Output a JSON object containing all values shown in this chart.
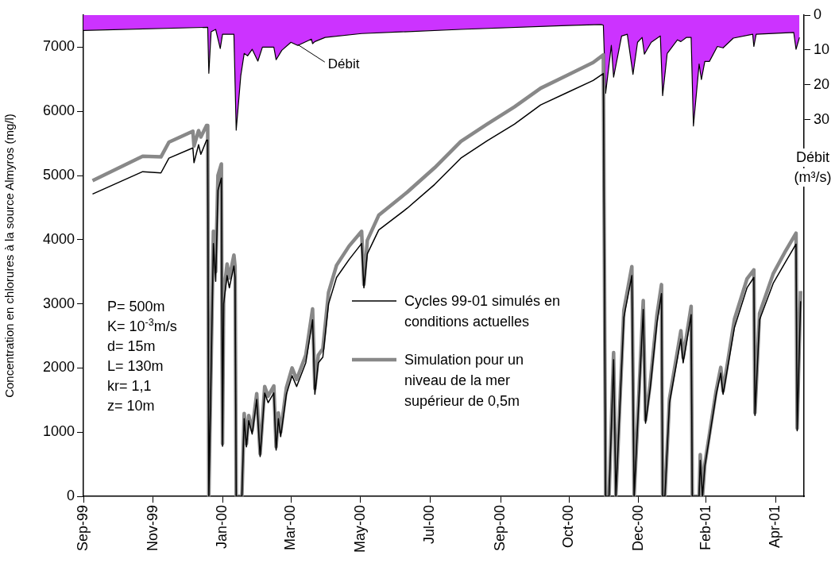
{
  "chart_data": {
    "type": "line",
    "ylabel": "Concentration en chlorures à la source Almyros (mg/l)",
    "y2label": "Débit (m³/s)",
    "legend": "bottom",
    "marker": "none",
    "xlim": [
      "1999-09-01",
      "2001-05-25"
    ],
    "xticks": [
      {
        "value": "1999-09-01",
        "label": "Sep-99"
      },
      {
        "value": "1999-11-01",
        "label": "Nov-99"
      },
      {
        "value": "2000-01-01",
        "label": "Jan-00"
      },
      {
        "value": "2000-03-01",
        "label": "Mar-00"
      },
      {
        "value": "2000-05-01",
        "label": "May-00"
      },
      {
        "value": "2000-07-01",
        "label": "Jul-00"
      },
      {
        "value": "2000-09-01",
        "label": "Sep-00"
      },
      {
        "value": "2000-10-31",
        "label": "Oct-00"
      },
      {
        "value": "2000-12-31",
        "label": "Dec-00"
      },
      {
        "value": "2001-02-28",
        "label": "Feb-01"
      },
      {
        "value": "2001-04-30",
        "label": "Apr-01"
      }
    ],
    "ylim": [
      0,
      7500
    ],
    "yticks": [
      0,
      1000,
      2000,
      3000,
      4000,
      5000,
      6000,
      7000
    ],
    "y2lim": [
      138,
      0
    ],
    "y2ticks": [
      0,
      10,
      20,
      30
    ],
    "annotations": [
      {
        "text": "Débit",
        "x": "2000-03-07",
        "y": 7040
      },
      "P= 500m",
      "K= 10$^{-3}$m/s",
      "d= 15m",
      "L= 130m",
      "kr= 1,1",
      "z= 10m"
    ],
    "series": [
      {
        "name": "Cycles 99-01 simulés en conditions actuelles",
        "color": "#000000",
        "x": [
          "1999-09-09",
          "1999-10-23",
          "1999-11-08",
          "1999-11-15",
          "1999-12-06",
          "1999-12-07",
          "1999-12-11",
          "1999-12-13",
          "1999-12-18",
          "1999-12-19",
          "1999-12-20",
          "1999-12-24",
          "1999-12-26",
          "1999-12-28",
          "1999-12-31",
          "2000-01-01",
          "2000-01-02",
          "2000-01-05",
          "2000-01-07",
          "2000-01-11",
          "2000-01-12",
          "2000-01-13",
          "2000-01-18",
          "2000-01-20",
          "2000-01-22",
          "2000-01-24",
          "2000-01-27",
          "2000-01-31",
          "2000-02-03",
          "2000-02-07",
          "2000-02-10",
          "2000-02-15",
          "2000-02-17",
          "2000-02-19",
          "2000-02-21",
          "2000-02-26",
          "2000-03-02",
          "2000-03-06",
          "2000-03-14",
          "2000-03-20",
          "2000-03-22",
          "2000-03-25",
          "2000-03-29",
          "2000-04-03",
          "2000-04-10",
          "2000-04-21",
          "2000-05-02",
          "2000-05-04",
          "2000-05-07",
          "2000-05-17",
          "2000-06-11",
          "2000-07-05",
          "2000-07-28",
          "2000-08-20",
          "2000-09-13",
          "2000-10-06",
          "2000-10-29",
          "2000-11-21",
          "2000-11-30",
          "2000-12-02",
          "2000-12-05",
          "2000-12-09",
          "2000-12-11",
          "2000-12-18",
          "2000-12-25",
          "2000-12-27",
          "2001-01-04",
          "2001-01-06",
          "2001-01-10",
          "2001-01-16",
          "2001-01-20",
          "2001-01-21",
          "2001-01-23",
          "2001-01-27",
          "2001-02-06",
          "2001-02-08",
          "2001-02-15",
          "2001-02-16",
          "2001-02-22",
          "2001-02-23",
          "2001-02-25",
          "2001-02-27",
          "2001-03-09",
          "2001-03-13",
          "2001-03-15",
          "2001-03-25",
          "2001-04-05",
          "2001-04-11",
          "2001-04-12",
          "2001-04-16",
          "2001-04-28",
          "2001-05-09",
          "2001-05-18",
          "2001-05-19",
          "2001-05-22"
        ],
        "values": [
          4710,
          5060,
          5040,
          5270,
          5430,
          5200,
          5480,
          5330,
          5550,
          5550,
          0,
          3940,
          3350,
          4770,
          4960,
          780,
          3000,
          3440,
          3250,
          3590,
          3410,
          0,
          0,
          1210,
          770,
          1180,
          970,
          1510,
          620,
          1610,
          1460,
          1610,
          720,
          1210,
          930,
          1590,
          1880,
          1710,
          2080,
          2750,
          1590,
          2080,
          2170,
          3000,
          3410,
          3690,
          3940,
          3250,
          3780,
          4150,
          4490,
          4860,
          5270,
          5540,
          5800,
          6100,
          6290,
          6480,
          6590,
          0,
          0,
          2130,
          0,
          2790,
          3440,
          0,
          2910,
          1140,
          1670,
          2700,
          3160,
          0,
          0,
          1460,
          2450,
          2080,
          2830,
          0,
          0,
          560,
          0,
          470,
          1590,
          1920,
          1590,
          2630,
          3250,
          3410,
          1260,
          2750,
          3320,
          3660,
          3930,
          1020,
          3040
        ]
      },
      {
        "name": "Simulation pour un niveau de la mer supérieur de 0,5m",
        "color": "#888888",
        "x": [
          "1999-09-09",
          "1999-10-23",
          "1999-11-08",
          "1999-11-15",
          "1999-12-06",
          "1999-12-07",
          "1999-12-11",
          "1999-12-13",
          "1999-12-18",
          "1999-12-19",
          "1999-12-20",
          "1999-12-24",
          "1999-12-26",
          "1999-12-28",
          "1999-12-31",
          "2000-01-01",
          "2000-01-02",
          "2000-01-05",
          "2000-01-07",
          "2000-01-11",
          "2000-01-12",
          "2000-01-13",
          "2000-01-18",
          "2000-01-20",
          "2000-01-22",
          "2000-01-24",
          "2000-01-27",
          "2000-01-31",
          "2000-02-03",
          "2000-02-07",
          "2000-02-10",
          "2000-02-15",
          "2000-02-17",
          "2000-02-19",
          "2000-02-21",
          "2000-02-26",
          "2000-03-02",
          "2000-03-06",
          "2000-03-14",
          "2000-03-20",
          "2000-03-22",
          "2000-03-25",
          "2000-03-29",
          "2000-04-03",
          "2000-04-10",
          "2000-04-21",
          "2000-05-02",
          "2000-05-04",
          "2000-05-07",
          "2000-05-17",
          "2000-06-11",
          "2000-07-05",
          "2000-07-28",
          "2000-08-20",
          "2000-09-13",
          "2000-10-06",
          "2000-10-29",
          "2000-11-21",
          "2000-11-30",
          "2000-12-02",
          "2000-12-05",
          "2000-12-09",
          "2000-12-11",
          "2000-12-18",
          "2000-12-25",
          "2000-12-27",
          "2001-01-04",
          "2001-01-06",
          "2001-01-10",
          "2001-01-16",
          "2001-01-20",
          "2001-01-21",
          "2001-01-23",
          "2001-01-27",
          "2001-02-06",
          "2001-02-08",
          "2001-02-15",
          "2001-02-16",
          "2001-02-22",
          "2001-02-23",
          "2001-02-25",
          "2001-02-27",
          "2001-03-09",
          "2001-03-13",
          "2001-03-15",
          "2001-03-25",
          "2001-04-05",
          "2001-04-11",
          "2001-04-12",
          "2001-04-16",
          "2001-04-28",
          "2001-05-09",
          "2001-05-18",
          "2001-05-19",
          "2001-05-22"
        ],
        "values": [
          4920,
          5300,
          5290,
          5520,
          5690,
          5460,
          5700,
          5600,
          5780,
          5780,
          0,
          4130,
          3500,
          5000,
          5180,
          820,
          3150,
          3620,
          3400,
          3760,
          3580,
          0,
          0,
          1290,
          820,
          1260,
          1030,
          1600,
          660,
          1710,
          1560,
          1720,
          770,
          1300,
          1000,
          1690,
          2000,
          1820,
          2200,
          2920,
          1680,
          2200,
          2300,
          3180,
          3600,
          3900,
          4130,
          3300,
          3990,
          4380,
          4740,
          5120,
          5530,
          5800,
          6070,
          6360,
          6560,
          6760,
          6880,
          0,
          0,
          2240,
          0,
          2900,
          3580,
          0,
          3050,
          1190,
          1740,
          2820,
          3300,
          0,
          0,
          1520,
          2580,
          2160,
          2960,
          0,
          0,
          650,
          0,
          500,
          1650,
          2010,
          1640,
          2760,
          3390,
          3530,
          1300,
          2850,
          3470,
          3830,
          4100,
          1060,
          3200
        ]
      },
      {
        "type": "area",
        "axis": "y2",
        "color": "#cc33ff",
        "x": [
          "1999-09-01",
          "1999-12-19",
          "1999-12-20",
          "1999-12-22",
          "1999-12-26",
          "1999-12-30",
          "2000-01-01",
          "2000-01-11",
          "2000-01-13",
          "2000-01-17",
          "2000-01-20",
          "2000-01-23",
          "2000-01-27",
          "2000-02-01",
          "2000-02-05",
          "2000-02-15",
          "2000-02-17",
          "2000-02-22",
          "2000-03-01",
          "2000-03-07",
          "2000-03-19",
          "2000-03-20",
          "2000-03-22",
          "2000-03-31",
          "2000-05-02",
          "2000-07-28",
          "2000-10-29",
          "2000-11-28",
          "2000-11-30",
          "2000-12-02",
          "2000-12-07",
          "2000-12-09",
          "2000-12-16",
          "2000-12-21",
          "2000-12-26",
          "2000-12-30",
          "2001-01-03",
          "2001-01-05",
          "2001-01-11",
          "2001-01-19",
          "2001-01-21",
          "2001-01-25",
          "2001-02-03",
          "2001-02-06",
          "2001-02-11",
          "2001-02-15",
          "2001-02-17",
          "2001-02-22",
          "2001-02-24",
          "2001-02-27",
          "2001-03-03",
          "2001-03-10",
          "2001-03-15",
          "2001-03-24",
          "2001-04-10",
          "2001-04-11",
          "2001-04-13",
          "2001-05-16",
          "2001-05-18",
          "2001-05-21"
        ],
        "values": [
          4.4,
          3.5,
          16.7,
          4.8,
          4.1,
          9.6,
          5.5,
          5.5,
          33,
          17.4,
          11,
          11.7,
          9.8,
          13.2,
          9.2,
          9.2,
          12.8,
          10.1,
          7.8,
          8.7,
          6.9,
          8.2,
          7.6,
          6.4,
          5.3,
          4.1,
          3,
          2.7,
          2.9,
          22.4,
          8.7,
          17.8,
          6,
          5.5,
          17,
          7.8,
          6.4,
          11.2,
          7.8,
          6,
          23.1,
          11,
          7.1,
          7.6,
          6.4,
          6.4,
          31.8,
          14,
          18.5,
          13.3,
          13.3,
          9,
          9.4,
          6.6,
          5.5,
          9,
          5.5,
          5,
          9.8,
          6.4
        ]
      }
    ]
  }
}
